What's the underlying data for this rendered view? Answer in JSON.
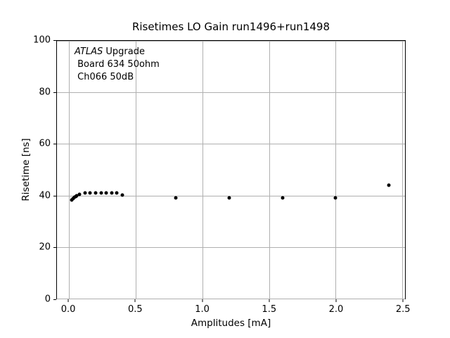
{
  "chart_data": {
    "type": "scatter",
    "title": "Risetimes LO Gain run1496+run1498",
    "xlabel": "Amplitudes [mA]",
    "ylabel": "Risetime [ns]",
    "xlim": [
      -0.09,
      2.52
    ],
    "ylim": [
      0,
      100
    ],
    "grid": true,
    "grid_color": "#b0b0b0",
    "marker_color": "#000000",
    "legend": "none",
    "xticks": [
      {
        "value": 0.0,
        "label": "0.0"
      },
      {
        "value": 0.5,
        "label": "0.5"
      },
      {
        "value": 1.0,
        "label": "1.0"
      },
      {
        "value": 1.5,
        "label": "1.5"
      },
      {
        "value": 2.0,
        "label": "2.0"
      },
      {
        "value": 2.5,
        "label": "2.5"
      }
    ],
    "yticks": [
      {
        "value": 0,
        "label": "0"
      },
      {
        "value": 20,
        "label": "20"
      },
      {
        "value": 40,
        "label": "40"
      },
      {
        "value": 60,
        "label": "60"
      },
      {
        "value": 80,
        "label": "80"
      },
      {
        "value": 100,
        "label": "100"
      }
    ],
    "points": [
      [
        0.02,
        38.3
      ],
      [
        0.03,
        38.9
      ],
      [
        0.04,
        39.3
      ],
      [
        0.05,
        39.7
      ],
      [
        0.06,
        40.0
      ],
      [
        0.08,
        40.5
      ],
      [
        0.12,
        41.0
      ],
      [
        0.16,
        41.0
      ],
      [
        0.2,
        41.0
      ],
      [
        0.24,
        41.0
      ],
      [
        0.28,
        41.0
      ],
      [
        0.32,
        41.0
      ],
      [
        0.36,
        41.0
      ],
      [
        0.4,
        40.3
      ],
      [
        0.8,
        39.0
      ],
      [
        1.2,
        39.0
      ],
      [
        1.6,
        39.0
      ],
      [
        2.0,
        39.0
      ],
      [
        2.4,
        44.0
      ]
    ],
    "annotation": {
      "italic": "ATLAS",
      "line1_rest": " Upgrade",
      "line2": " Board 634 50ohm",
      "line3": " Ch066 50dB"
    }
  }
}
